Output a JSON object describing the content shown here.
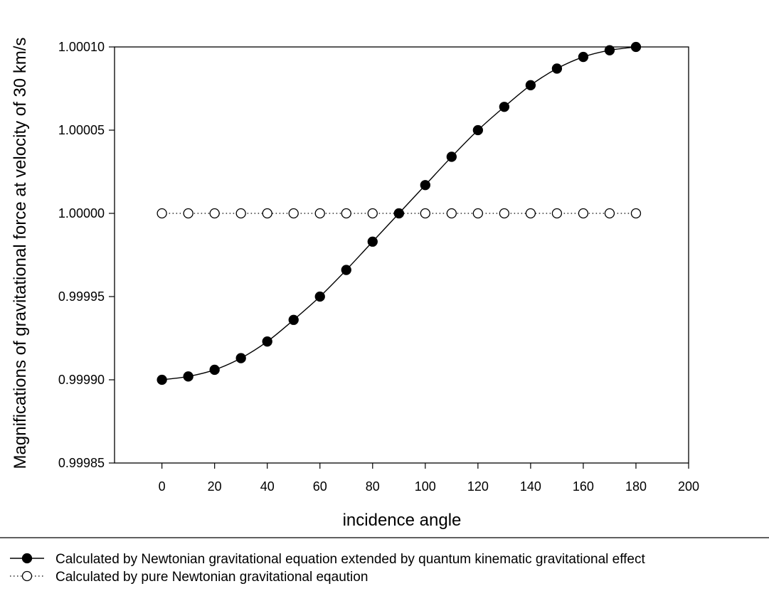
{
  "chart_data": {
    "type": "line",
    "xlabel": "incidence angle",
    "ylabel": "Magnifications of gravitational force at velocity of 30 km/s",
    "xlim": [
      -18,
      200
    ],
    "ylim": [
      0.99985,
      1.0001
    ],
    "xticks": [
      0,
      20,
      40,
      60,
      80,
      100,
      120,
      140,
      160,
      180,
      200
    ],
    "xtick_labels": [
      "0",
      "20",
      "40",
      "60",
      "80",
      "100",
      "120",
      "140",
      "160",
      "180",
      "200"
    ],
    "yticks": [
      0.99985,
      0.9999,
      0.99995,
      1.0,
      1.00005,
      1.0001
    ],
    "ytick_labels": [
      "0.99985",
      "0.99990",
      "0.99995",
      "1.00000",
      "1.00005",
      "1.00010"
    ],
    "grid": false,
    "legend_position": "bottom",
    "x": [
      0,
      10,
      20,
      30,
      40,
      50,
      60,
      70,
      80,
      90,
      100,
      110,
      120,
      130,
      140,
      150,
      160,
      170,
      180
    ],
    "series": [
      {
        "name": "Calculated by Newtonian gravitational equation extended by quantum kinematic gravitational effect",
        "style": "solid line, filled circle markers",
        "color": "#000000",
        "values": [
          0.9999,
          0.999902,
          0.999906,
          0.999913,
          0.999923,
          0.999936,
          0.99995,
          0.999966,
          0.999983,
          1.0,
          1.000017,
          1.000034,
          1.00005,
          1.000064,
          1.000077,
          1.000087,
          1.000094,
          1.000098,
          1.0001
        ]
      },
      {
        "name": "Calculated by pure Newtonian gravitational eqaution",
        "style": "dotted line, open circle markers",
        "color": "#000000",
        "values": [
          1.0,
          1.0,
          1.0,
          1.0,
          1.0,
          1.0,
          1.0,
          1.0,
          1.0,
          1.0,
          1.0,
          1.0,
          1.0,
          1.0,
          1.0,
          1.0,
          1.0,
          1.0,
          1.0
        ]
      }
    ]
  }
}
